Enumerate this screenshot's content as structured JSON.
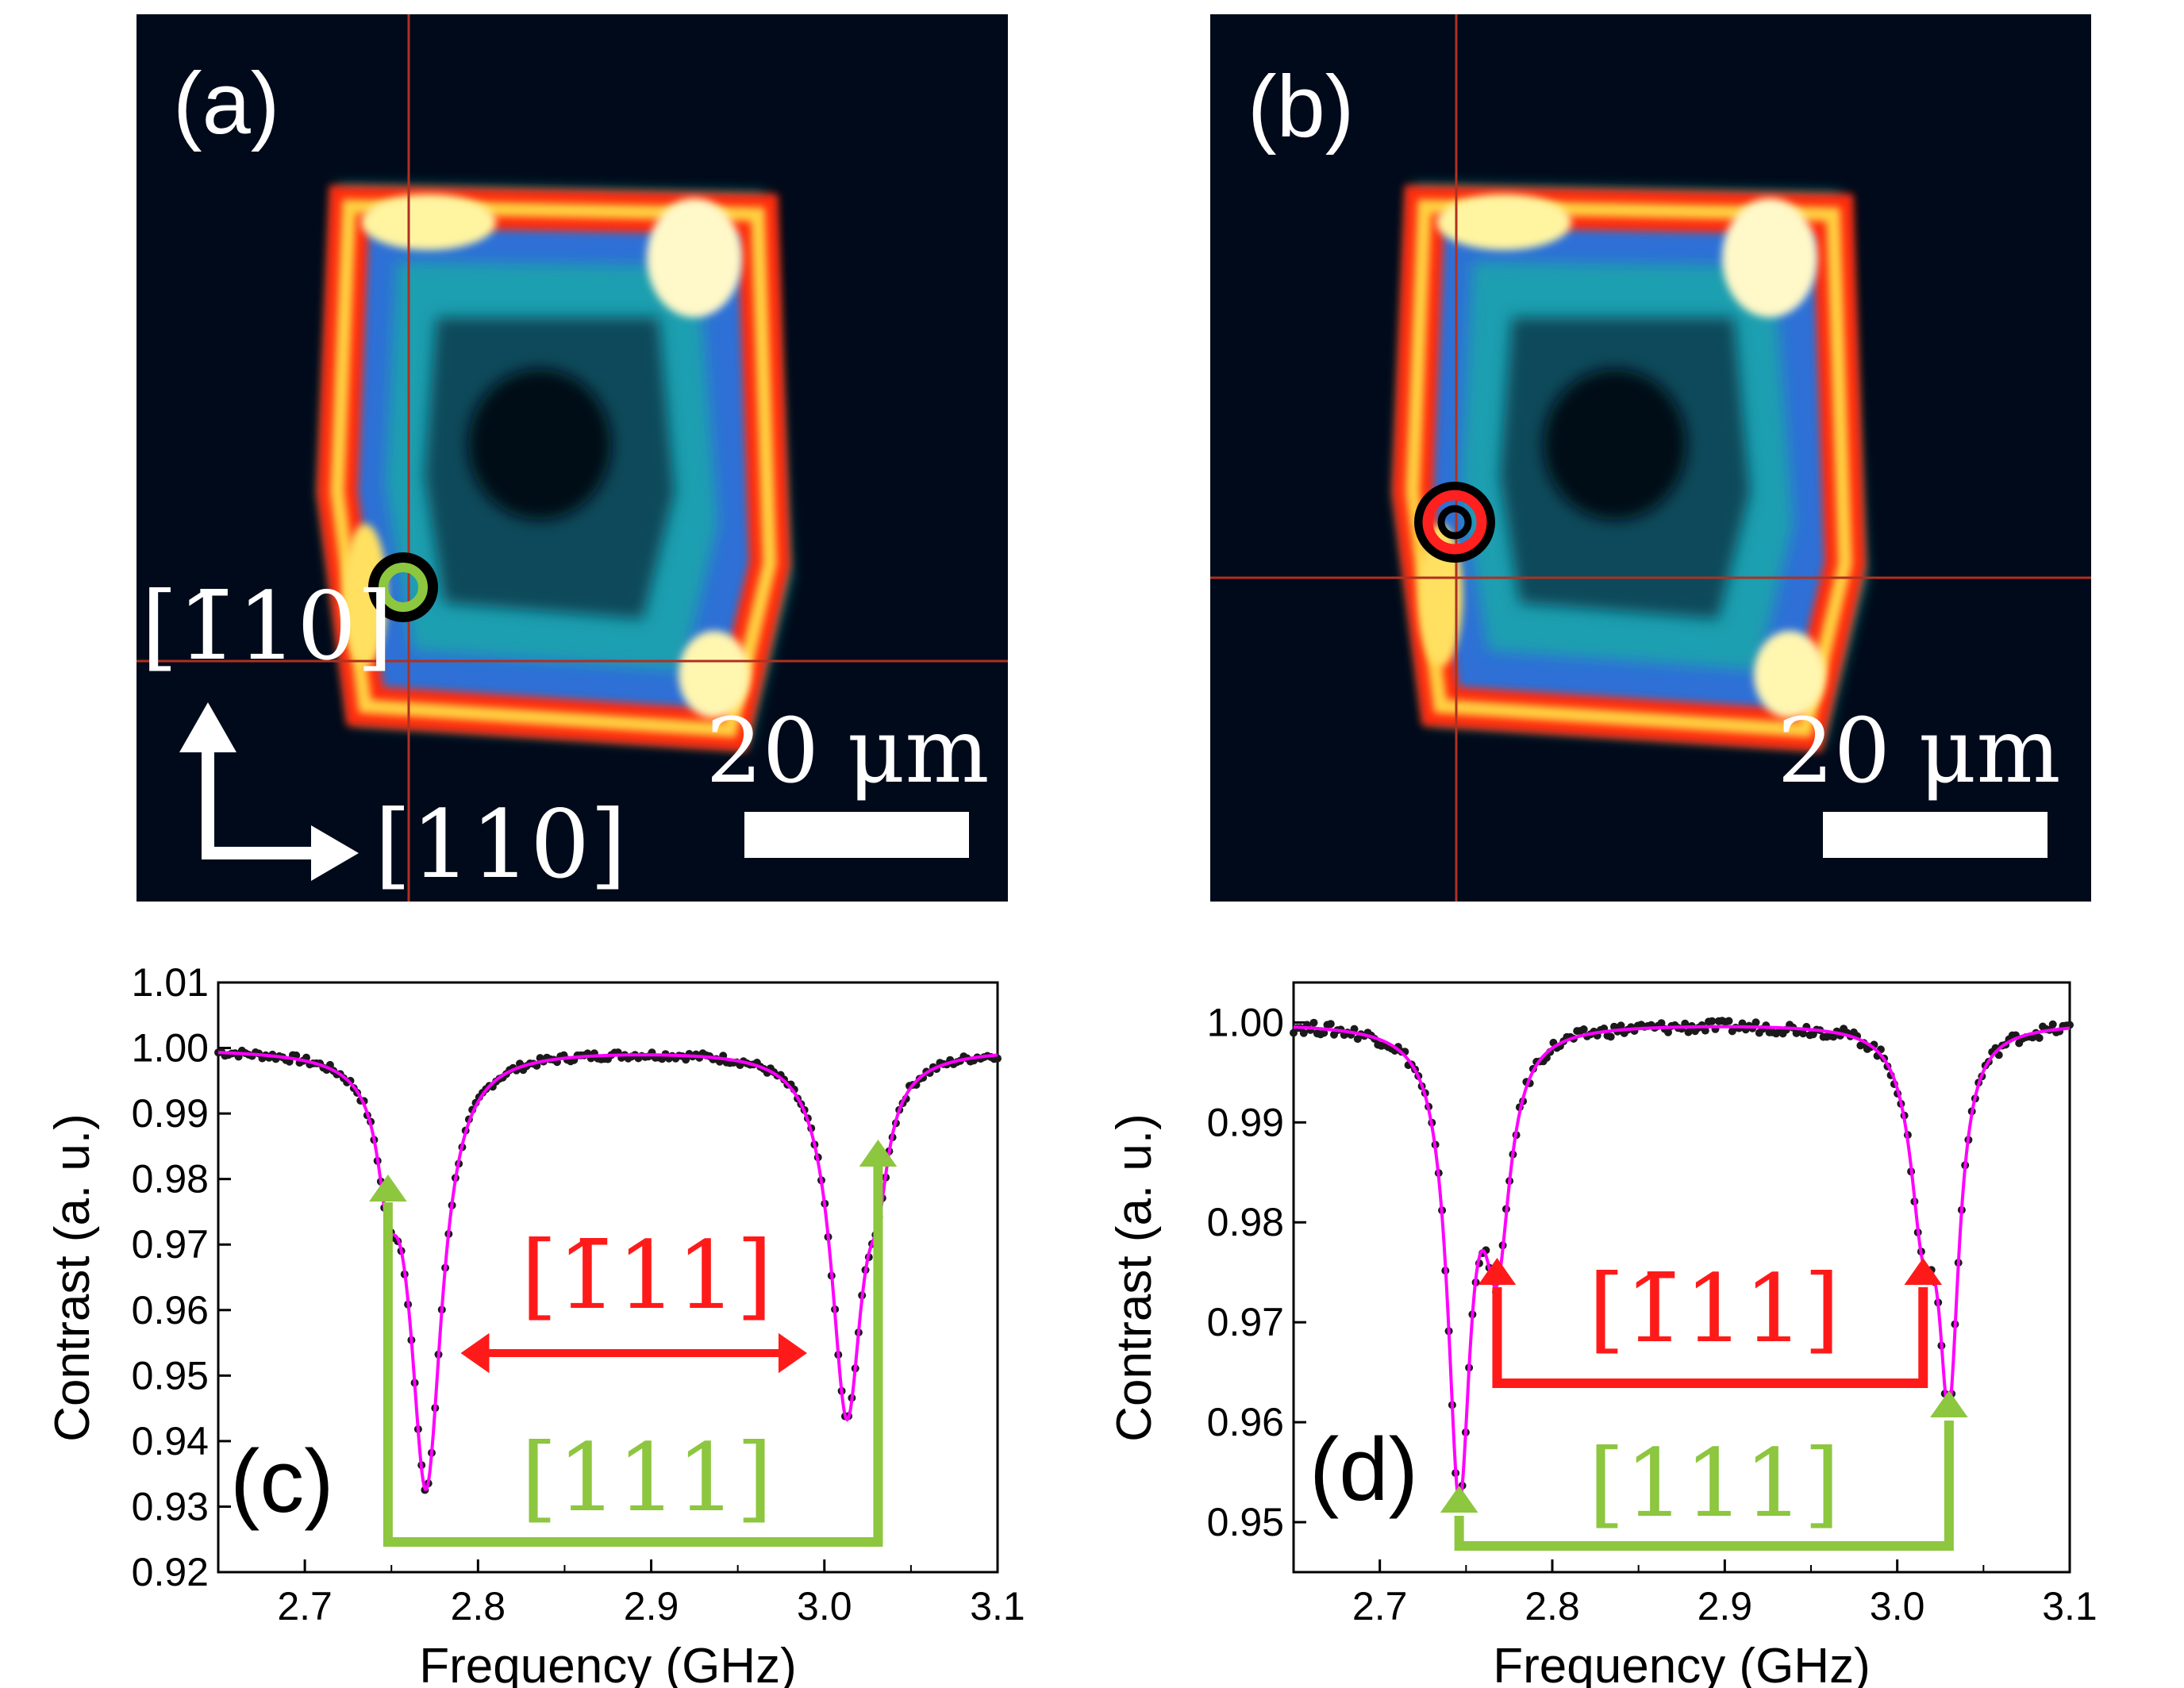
{
  "figure": {
    "panel_a": {
      "label": "(a)",
      "scale_bar": "20 μm",
      "axis_up": "[1̄10]",
      "axis_right": "[110]",
      "marker_color": "#8dc63f"
    },
    "panel_b": {
      "label": "(b)",
      "scale_bar": "20 μm",
      "marker_color": "#ff2020"
    }
  },
  "chart_data": [
    {
      "type": "line",
      "panel_label": "(c)",
      "xlabel": "Frequency (GHz)",
      "ylabel": "Contrast (a. u.)",
      "xlim": [
        2.65,
        3.1
      ],
      "ylim": [
        0.92,
        1.01
      ],
      "xticks": [
        "2.7",
        "2.8",
        "2.9",
        "3.0",
        "3.1"
      ],
      "yticks": [
        "0.92",
        "0.93",
        "0.94",
        "0.95",
        "0.96",
        "0.97",
        "0.98",
        "0.99",
        "1.00",
        "1.01"
      ],
      "dips": [
        {
          "f": 2.748,
          "depth": 0.014,
          "width": 0.007
        },
        {
          "f": 2.77,
          "depth": 0.066,
          "width": 0.011
        },
        {
          "f": 3.013,
          "depth": 0.055,
          "width": 0.011
        },
        {
          "f": 3.031,
          "depth": 0.012,
          "width": 0.007
        }
      ],
      "baseline": 1.0,
      "annotations": {
        "red_label": "[1̄11]",
        "green_label": "[111]",
        "red_color": "#ff1a1a",
        "green_color": "#8dc63f"
      },
      "series_colors": {
        "data": "#1a1a1a",
        "fit": "#ff00ff"
      }
    },
    {
      "type": "line",
      "panel_label": "(d)",
      "xlabel": "Frequency (GHz)",
      "ylabel": "Contrast (a. u.)",
      "xlim": [
        2.65,
        3.1
      ],
      "ylim": [
        0.945,
        1.004
      ],
      "xticks": [
        "2.7",
        "2.8",
        "2.9",
        "3.0",
        "3.1"
      ],
      "yticks": [
        "0.95",
        "0.96",
        "0.97",
        "0.98",
        "0.99",
        "1.00"
      ],
      "dips": [
        {
          "f": 2.746,
          "depth": 0.045,
          "width": 0.008
        },
        {
          "f": 2.768,
          "depth": 0.021,
          "width": 0.009
        },
        {
          "f": 3.015,
          "depth": 0.018,
          "width": 0.009
        },
        {
          "f": 3.03,
          "depth": 0.034,
          "width": 0.007
        }
      ],
      "baseline": 1.0,
      "annotations": {
        "red_label": "[1̄11]",
        "green_label": "[111]",
        "red_color": "#ff1a1a",
        "green_color": "#8dc63f"
      },
      "series_colors": {
        "data": "#1a1a1a",
        "fit": "#ff00ff"
      }
    }
  ]
}
